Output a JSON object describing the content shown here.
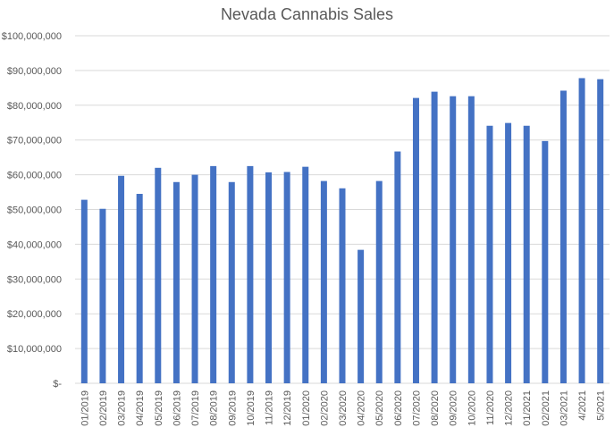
{
  "chart_data": {
    "type": "bar",
    "title": "Nevada Cannabis Sales",
    "xlabel": "",
    "ylabel": "",
    "ylim": [
      0,
      100000000
    ],
    "yticks": [
      0,
      10000000,
      20000000,
      30000000,
      40000000,
      50000000,
      60000000,
      70000000,
      80000000,
      90000000,
      100000000
    ],
    "ytick_labels": [
      "$-",
      "$10,000,000",
      "$20,000,000",
      "$30,000,000",
      "$40,000,000",
      "$50,000,000",
      "$60,000,000",
      "$70,000,000",
      "$80,000,000",
      "$90,000,000",
      "$100,000,000"
    ],
    "grid": true,
    "categories": [
      "01/2019",
      "02/2019",
      "03/2019",
      "04/2019",
      "05/2019",
      "06/2019",
      "07/2019",
      "08/2019",
      "09/2019",
      "10/2019",
      "11/2019",
      "12/2019",
      "01/2020",
      "02/2020",
      "03/2020",
      "04/2020",
      "05/2020",
      "06/2020",
      "07/2020",
      "08/2020",
      "09/2020",
      "10/2020",
      "11/2020",
      "12/2020",
      "01/2021",
      "02/2021",
      "03/2021",
      "4/2021",
      "5/2021"
    ],
    "values": [
      52800000,
      50200000,
      59700000,
      54500000,
      62000000,
      57900000,
      60000000,
      62500000,
      57900000,
      62500000,
      60700000,
      60800000,
      62300000,
      58200000,
      56100000,
      38400000,
      58200000,
      66700000,
      82100000,
      83900000,
      82600000,
      82600000,
      74100000,
      74900000,
      74100000,
      69700000,
      84200000,
      87800000,
      87500000
    ],
    "bar_color": "#4472c4",
    "grid_color": "#d9d9d9"
  }
}
